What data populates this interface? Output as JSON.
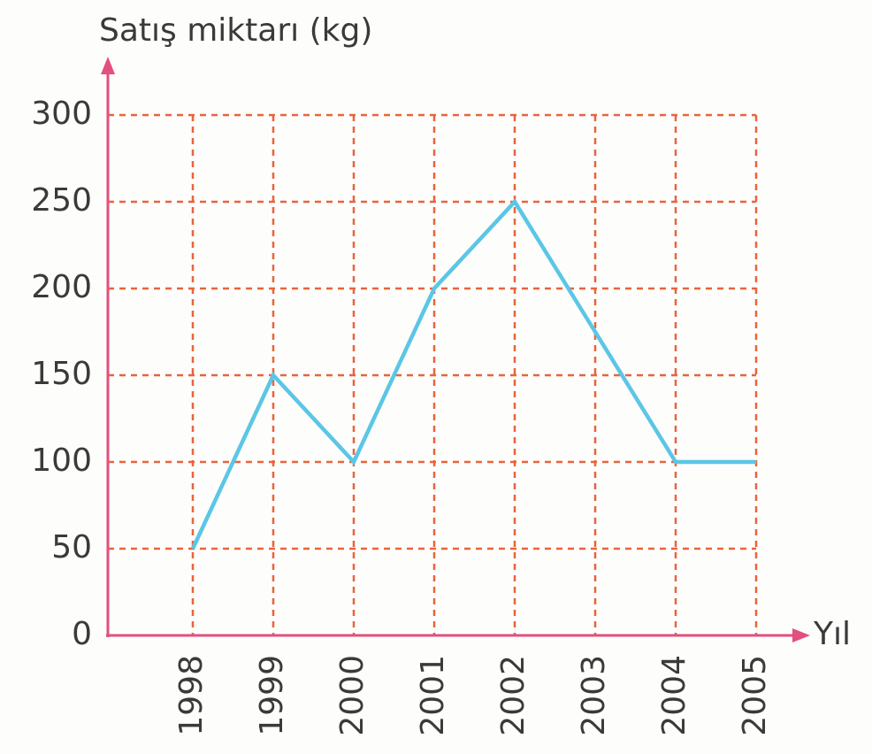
{
  "chart_data": {
    "type": "line",
    "y_label": "Satış miktarı (kg)",
    "x_label": "Yıl",
    "categories": [
      "1998",
      "1999",
      "2000",
      "2001",
      "2002",
      "2003",
      "2004",
      "2005"
    ],
    "series": [
      {
        "name": "Satış miktarı",
        "color": "#5bc6e6",
        "values": [
          50,
          150,
          100,
          200,
          250,
          175,
          100,
          100
        ]
      }
    ],
    "ylim": [
      0,
      300
    ],
    "yticks": [
      0,
      50,
      100,
      150,
      200,
      250,
      300
    ],
    "grid": true,
    "grid_color": "#e8643c",
    "axis_color": "#e34f7f"
  }
}
